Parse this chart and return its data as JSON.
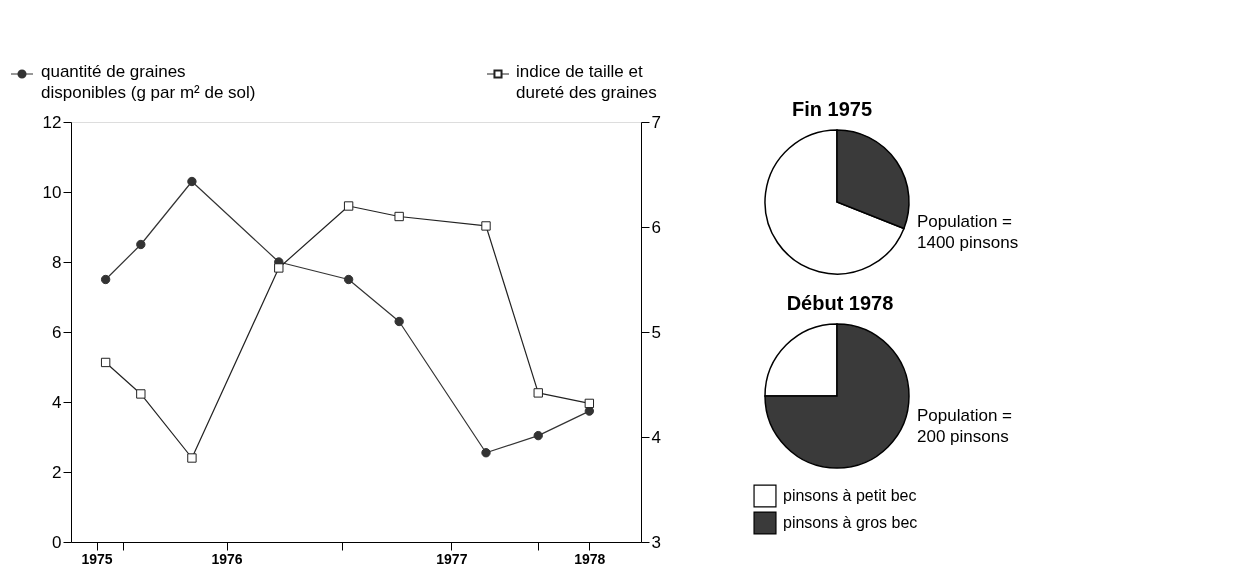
{
  "chart_data": [
    {
      "type": "line",
      "x": [
        "1975-12",
        "1976-02",
        "1976-05",
        "1976-10",
        "1977-02",
        "1977-05",
        "1977-10",
        "1978-01",
        "1978-04"
      ],
      "series": [
        {
          "name": "quantité de graines disponibles (g par m² de sol)",
          "color": "#333333",
          "marker": "circle",
          "values": [
            7.5,
            8.5,
            10.3,
            8.0,
            7.5,
            6.3,
            2.55,
            3.04,
            3.74
          ]
        },
        {
          "name": "indice de taille et dureté des graines",
          "color": "#222222",
          "marker": "square",
          "axis": "y2",
          "values": [
            4.71,
            4.41,
            3.8,
            5.61,
            6.2,
            6.1,
            6.01,
            4.42,
            4.32
          ]
        }
      ],
      "xlim": [
        "1975-10",
        "1978-07"
      ],
      "xticks": [
        {
          "value": "1975-11-15",
          "label": "1975"
        },
        {
          "value": "1976-01-01",
          "label": null
        },
        {
          "value": "1976-07",
          "label": "1976"
        },
        {
          "value": "1977-01-20",
          "label": null
        },
        {
          "value": "1977-08",
          "label": "1977"
        },
        {
          "value": "1978-01-01",
          "label": null
        },
        {
          "value": "1978-04",
          "label": "1978"
        }
      ],
      "ylim": [
        0,
        12
      ],
      "yticks": [
        0,
        2,
        4,
        6,
        8,
        10,
        12
      ],
      "y2lim": [
        3,
        7
      ],
      "y2ticks": [
        3,
        4,
        5,
        6,
        7
      ],
      "grid": false,
      "legend": "top",
      "line_style": "solid"
    },
    {
      "type": "pie",
      "title": "Fin 1975",
      "categories": [
        null,
        null
      ],
      "values": [
        69,
        31
      ],
      "colors": [
        "#ffffff",
        "#3a3a3a"
      ],
      "annotations": [
        "Population = 1400 pinsons"
      ]
    },
    {
      "type": "pie",
      "title": "Début 1978",
      "categories": [
        "pinsons à petit bec",
        "pinsons à gros bec"
      ],
      "values": [
        25,
        75
      ],
      "colors": [
        "#ffffff",
        "#3a3a3a"
      ],
      "annotations": [
        "Population = 200 pinsons"
      ],
      "legend": "bottom"
    }
  ]
}
